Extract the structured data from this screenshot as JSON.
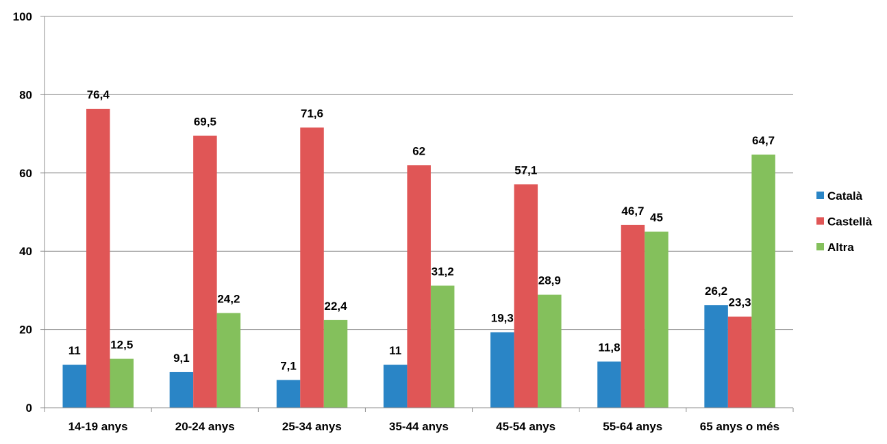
{
  "chart_data": {
    "type": "bar",
    "title": "",
    "xlabel": "",
    "ylabel": "",
    "ylim": [
      0,
      100
    ],
    "yticks": [
      0,
      20,
      40,
      60,
      80,
      100
    ],
    "grid": true,
    "legend_position": "right",
    "categories": [
      "14-19 anys",
      "20-24 anys",
      "25-34 anys",
      "35-44 anys",
      "45-54 anys",
      "55-64 anys",
      "65 anys o més"
    ],
    "series": [
      {
        "name": "Català",
        "color": "#2A85C6",
        "values": [
          11,
          9.1,
          7.1,
          11,
          19.3,
          11.8,
          26.2
        ],
        "labels": [
          "11",
          "9,1",
          "7,1",
          "11",
          "19,3",
          "11,8",
          "26,2"
        ]
      },
      {
        "name": "Castellà",
        "color": "#E05656",
        "values": [
          76.4,
          69.5,
          71.6,
          62,
          57.1,
          46.7,
          23.3
        ],
        "labels": [
          "76,4",
          "69,5",
          "71,6",
          "62",
          "57,1",
          "46,7",
          "23,3"
        ]
      },
      {
        "name": "Altra",
        "color": "#84C05C",
        "values": [
          12.5,
          24.2,
          22.4,
          31.2,
          28.9,
          45,
          64.7
        ],
        "labels": [
          "12,5",
          "24,2",
          "22,4",
          "31,2",
          "28,9",
          "45",
          "64,7"
        ]
      }
    ]
  }
}
